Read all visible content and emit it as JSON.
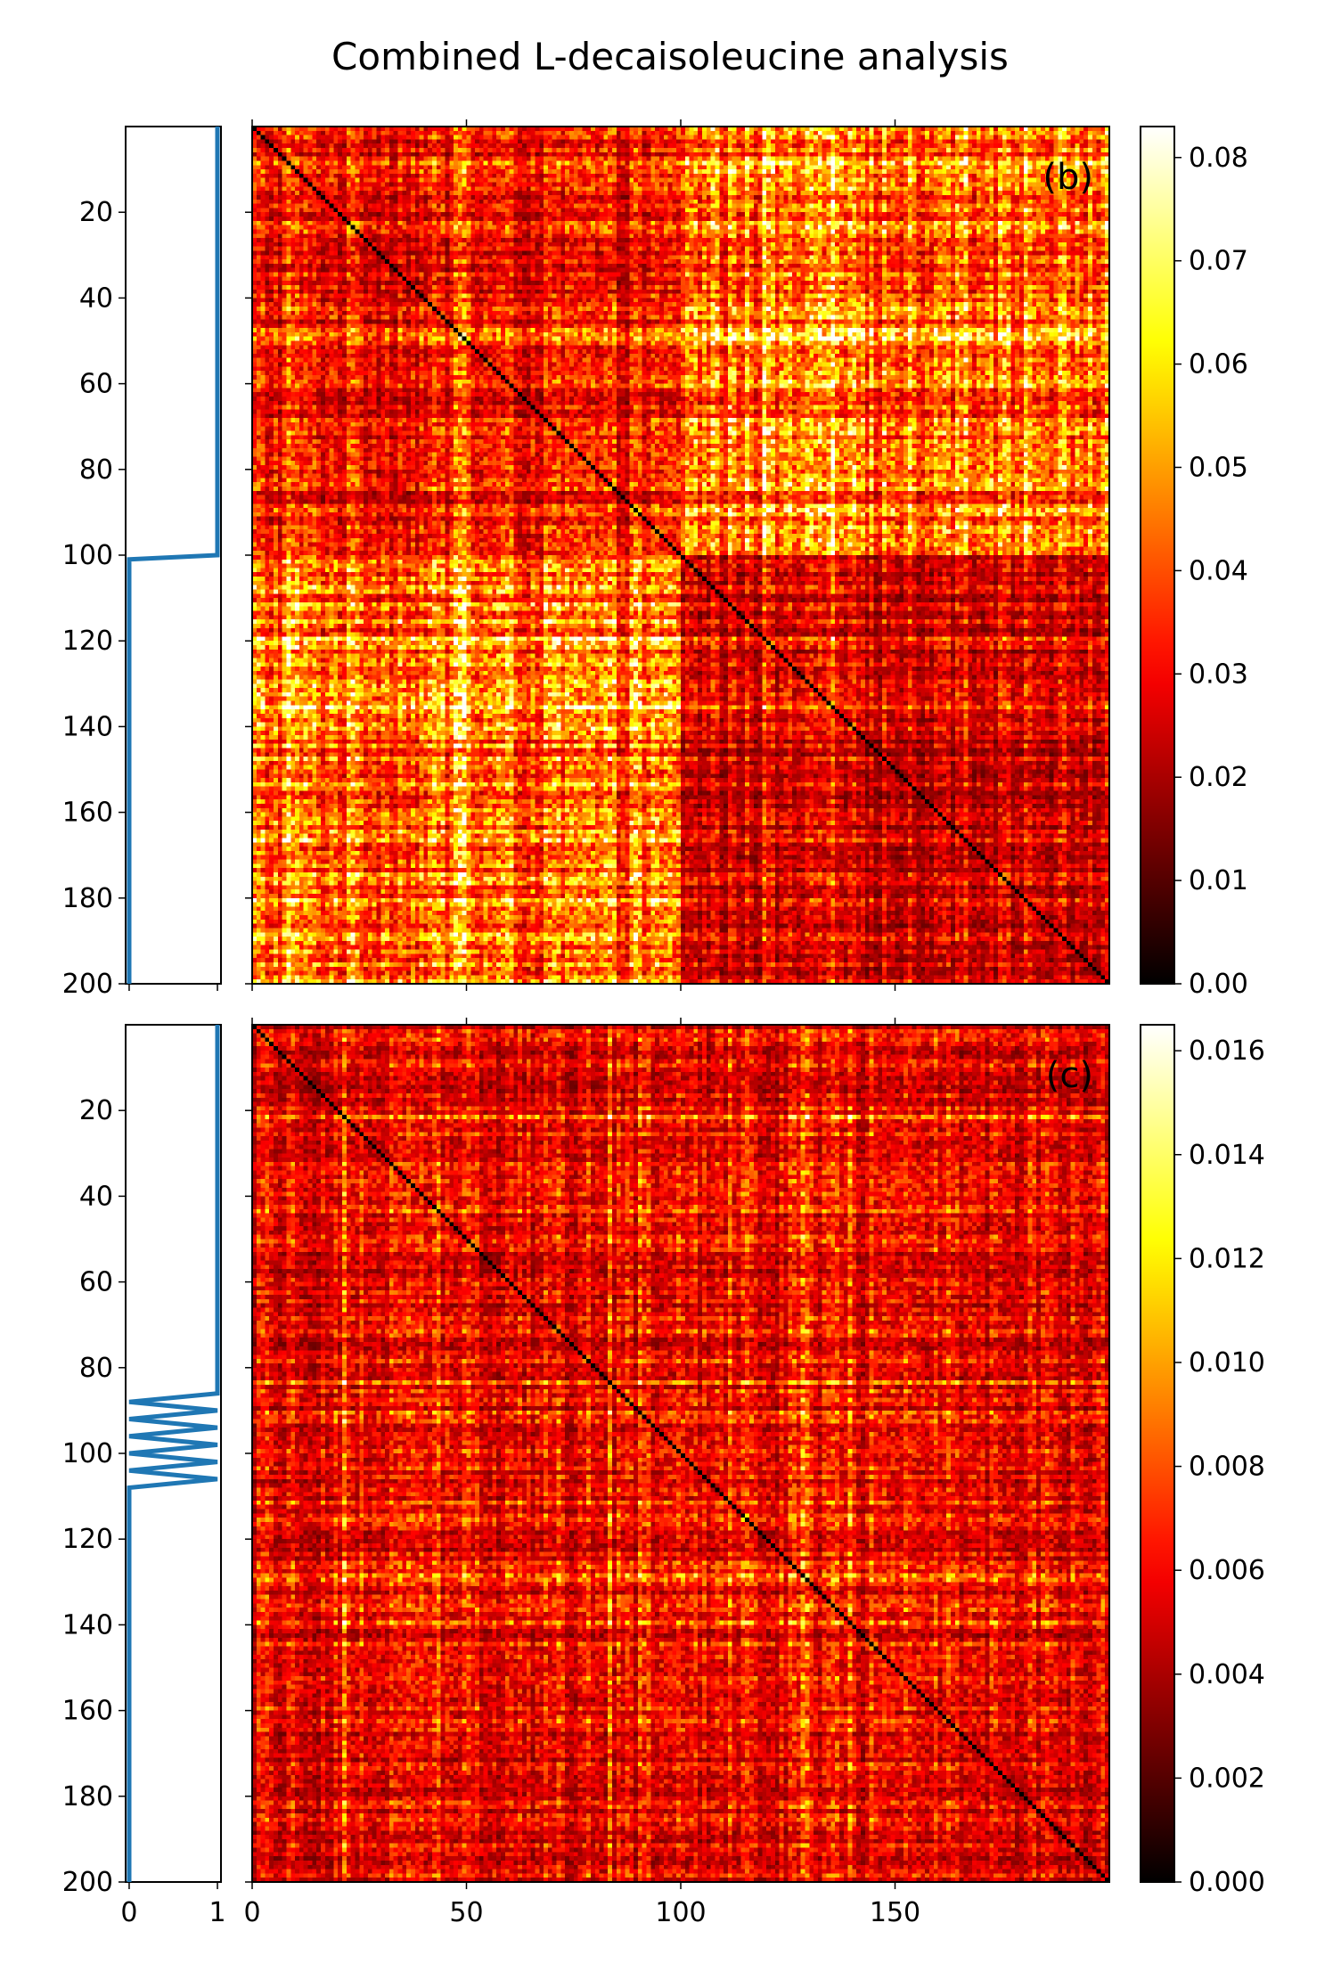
{
  "chart_data": {
    "title": "Combined L-decaisoleucine analysis",
    "panels": [
      {
        "label": "(b)",
        "type": "heatmap",
        "colormap": "hot",
        "size": 200,
        "x_ticks": [
          0,
          50,
          100,
          150
        ],
        "y_ticks": [
          20,
          40,
          60,
          80,
          100,
          120,
          140,
          160,
          180,
          200
        ],
        "colorbar": {
          "min": 0.0,
          "max": 0.083,
          "ticks": [
            "0.00",
            "0.01",
            "0.02",
            "0.03",
            "0.04",
            "0.05",
            "0.06",
            "0.07",
            "0.08"
          ]
        },
        "block_structure": {
          "split": 100,
          "within_first_block_mean": 0.03,
          "within_second_block_mean": 0.025,
          "between_blocks_mean": 0.043,
          "diagonal": 0.0
        },
        "side_profile": {
          "type": "line",
          "x_ticks": [
            0,
            1
          ],
          "points": [
            [
              1,
              0
            ],
            [
              1,
              100
            ],
            [
              0,
              101
            ],
            [
              0,
              200
            ]
          ]
        }
      },
      {
        "label": "(c)",
        "type": "heatmap",
        "colormap": "hot",
        "size": 200,
        "x_ticks": [
          0,
          50,
          100,
          150
        ],
        "y_ticks": [
          20,
          40,
          60,
          80,
          100,
          120,
          140,
          160,
          180,
          200
        ],
        "colorbar": {
          "min": 0.0,
          "max": 0.0165,
          "ticks": [
            "0.000",
            "0.002",
            "0.004",
            "0.006",
            "0.008",
            "0.010",
            "0.012",
            "0.014",
            "0.016"
          ]
        },
        "block_structure": {
          "split": null,
          "within_first_block_mean": 0.0058,
          "within_second_block_mean": 0.0058,
          "between_blocks_mean": 0.0058,
          "diagonal": 0.0
        },
        "side_profile": {
          "type": "line",
          "x_ticks": [
            0,
            1
          ],
          "points": [
            [
              1,
              0
            ],
            [
              1,
              86
            ],
            [
              0,
              88
            ],
            [
              1,
              90
            ],
            [
              0,
              92
            ],
            [
              1,
              94
            ],
            [
              0,
              96
            ],
            [
              1,
              98
            ],
            [
              0,
              100
            ],
            [
              1,
              102
            ],
            [
              0,
              104
            ],
            [
              1,
              106
            ],
            [
              0,
              108
            ],
            [
              0,
              200
            ]
          ]
        }
      }
    ]
  }
}
